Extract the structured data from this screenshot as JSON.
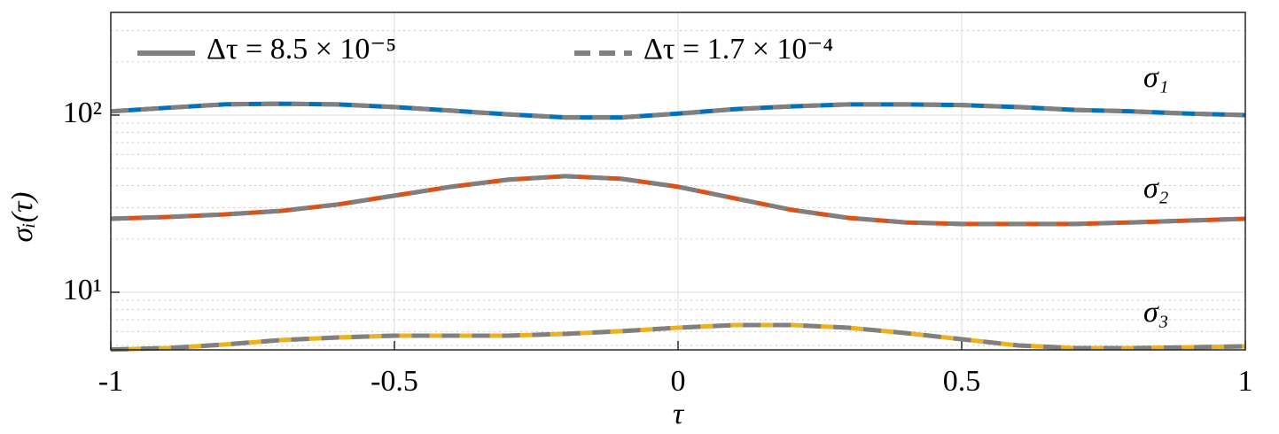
{
  "chart_data": {
    "type": "line",
    "xlabel": "τ",
    "ylabel": "σᵢ(τ)",
    "x": [
      -1,
      -0.9,
      -0.8,
      -0.7,
      -0.6,
      -0.5,
      -0.4,
      -0.3,
      -0.2,
      -0.1,
      0,
      0.1,
      0.2,
      0.3,
      0.4,
      0.5,
      0.6,
      0.7,
      0.8,
      0.9,
      1
    ],
    "line_color": "#808080",
    "legend": [
      {
        "label": "Δτ = 8.5 × 10⁻⁵",
        "style": "solid"
      },
      {
        "label": "Δτ = 1.7 × 10⁻⁴",
        "style": "dashed"
      }
    ],
    "series": [
      {
        "name": "σ₁",
        "color": "#0072BD",
        "values": [
          105,
          110,
          115,
          116,
          115,
          111,
          106,
          101,
          97,
          97,
          102,
          108,
          112,
          115,
          115,
          114,
          111,
          107,
          105,
          102,
          100
        ]
      },
      {
        "name": "σ₂",
        "color": "#D95319",
        "values": [
          26,
          26.6,
          27.5,
          28.8,
          31.3,
          35.1,
          39.4,
          43.2,
          45.2,
          43.7,
          39.4,
          33.9,
          29.2,
          26.3,
          24.8,
          24.3,
          24.3,
          24.3,
          24.8,
          25.4,
          26
        ]
      },
      {
        "name": "σ₃",
        "color": "#EDB120",
        "values": [
          4.75,
          4.84,
          5.07,
          5.37,
          5.56,
          5.69,
          5.69,
          5.69,
          5.82,
          6.03,
          6.31,
          6.53,
          6.53,
          6.31,
          5.89,
          5.43,
          5.01,
          4.84,
          4.84,
          4.89,
          4.95
        ]
      }
    ],
    "xlim": [
      -1,
      1
    ],
    "xticks": [
      -1,
      -0.5,
      0,
      0.5,
      1
    ],
    "ylim": [
      4.73,
      380
    ],
    "log_y": true,
    "yticks": [
      {
        "value": 10,
        "label": "10¹"
      },
      {
        "value": 100,
        "label": "10²"
      }
    ],
    "yminorticks": [
      5,
      6,
      7,
      8,
      9,
      20,
      30,
      40,
      50,
      60,
      70,
      80,
      90,
      200,
      300
    ],
    "grid": true
  }
}
